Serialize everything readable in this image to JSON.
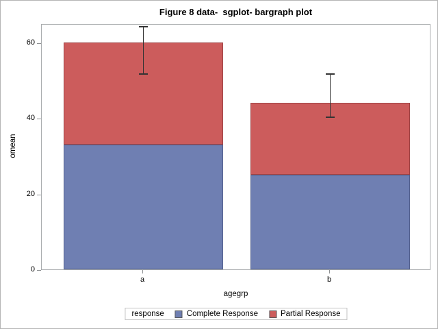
{
  "figure": {
    "background": "#ffffff",
    "border_color": "#b4b4b4"
  },
  "chart_data": {
    "type": "bar",
    "stacked": true,
    "title": "Figure 8 data-  sgplot- bargraph plot",
    "xlabel": "agegrp",
    "ylabel": "omean",
    "categories": [
      "a",
      "b"
    ],
    "series": [
      {
        "name": "Complete Response",
        "values": [
          33,
          25
        ],
        "fill": "#6F7FB2",
        "border": "#54618E"
      },
      {
        "name": "Partial Response",
        "values": [
          27,
          19
        ],
        "fill": "#CC5C5C",
        "border": "#9E4345"
      }
    ],
    "stack_totals": [
      60,
      44
    ],
    "error_bars": [
      {
        "lower": 52,
        "upper": 64.5
      },
      {
        "lower": 40.5,
        "upper": 52
      }
    ],
    "error_bar_color": "#333333",
    "yticks": [
      0,
      20,
      40,
      60
    ],
    "ylim": [
      0,
      65
    ],
    "grid": false,
    "legend": {
      "title": "response",
      "position": "bottom-center",
      "entries": [
        "Complete Response",
        "Partial Response"
      ]
    }
  }
}
